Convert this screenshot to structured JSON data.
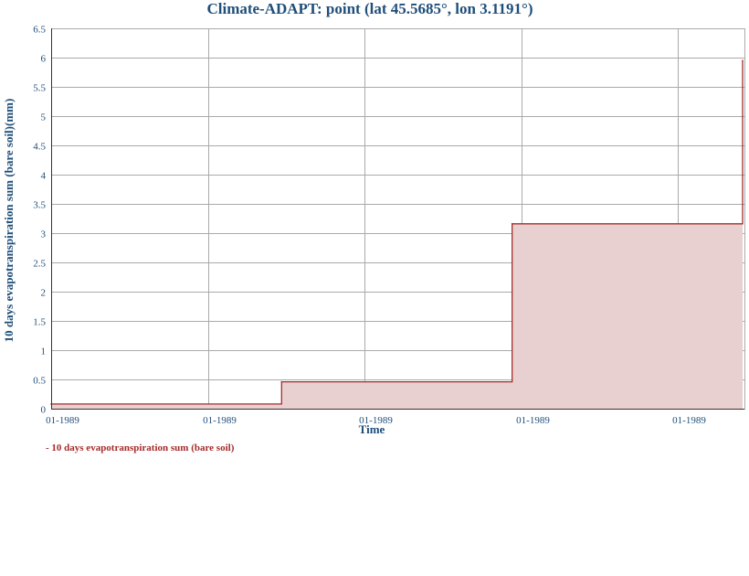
{
  "chart_data": {
    "type": "area",
    "title": "Climate-ADAPT: point (lat 45.5685°, lon 3.1191°)",
    "xlabel": "Time",
    "ylabel": "10 days evapotranspiration sum (bare soil)(mm)",
    "ylim": [
      0,
      6.5
    ],
    "yticks": [
      "0",
      "0.5",
      "1",
      "1.5",
      "2",
      "2.5",
      "3",
      "3.5",
      "4",
      "4.5",
      "5",
      "5.5",
      "6",
      "6.5"
    ],
    "xticks": [
      "01-1989",
      "01-1989",
      "01-1989",
      "01-1989",
      "01-1989"
    ],
    "grid": true,
    "legend_position": "bottom-left",
    "series": [
      {
        "name": "10 days evapotranspiration sum (bare soil)",
        "color": "#a52a2a",
        "fill": "#e8d0d0",
        "step": "post",
        "x": [
          "1989-01-01",
          "1989-01-11",
          "1989-01-21",
          "1989-01-31"
        ],
        "values": [
          0.08,
          0.46,
          3.16,
          5.95
        ]
      }
    ]
  },
  "legend": {
    "entry_label": "- 10 days evapotranspiration sum (bare soil)"
  }
}
